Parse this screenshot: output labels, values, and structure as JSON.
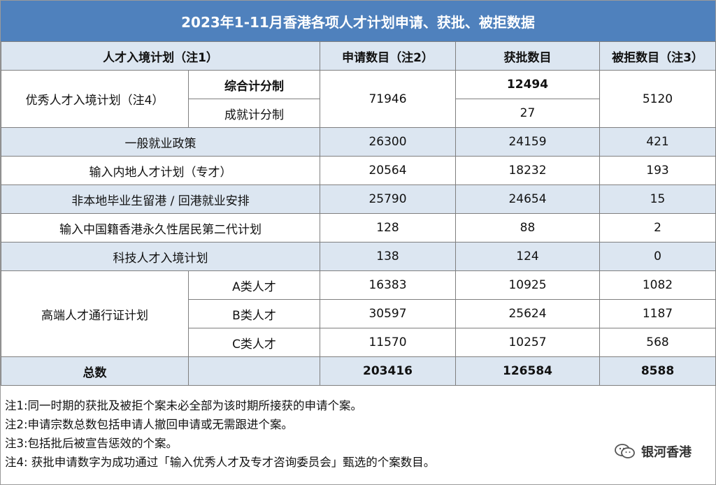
{
  "title": "2023年1-11月香港各项人才计划申请、获批、被拒数据",
  "headers": [
    "人才入境计划（注1）",
    "申请数目（注2）",
    "获批数目",
    "被拒数目（注3）"
  ],
  "rows": {
    "excellence": {
      "name": "优秀人才入境计划（注4）",
      "sub1": "综合计分制",
      "sub2": "成就计分制",
      "applied": "71946",
      "approved1": "12494",
      "approved2": "27",
      "rejected": "5120"
    },
    "general": {
      "name": "一般就业政策",
      "applied": "26300",
      "approved": "24159",
      "rejected": "421"
    },
    "mainland": {
      "name": "输入内地人才计划（专才）",
      "applied": "20564",
      "approved": "18232",
      "rejected": "193"
    },
    "graduates": {
      "name": "非本地毕业生留港 / 回港就业安排",
      "applied": "25790",
      "approved": "24654",
      "rejected": "15"
    },
    "second_gen": {
      "name": "输入中国籍香港永久性居民第二代计划",
      "applied": "128",
      "approved": "88",
      "rejected": "2"
    },
    "tech": {
      "name": "科技人才入境计划",
      "applied": "138",
      "approved": "124",
      "rejected": "0"
    },
    "top_talent": {
      "name": "高端人才通行证计划",
      "a": {
        "label": "A类人才",
        "applied": "16383",
        "approved": "10925",
        "rejected": "1082"
      },
      "b": {
        "label": "B类人才",
        "applied": "30597",
        "approved": "25624",
        "rejected": "1187"
      },
      "c": {
        "label": "C类人才",
        "applied": "11570",
        "approved": "10257",
        "rejected": "568"
      }
    },
    "total": {
      "name": "总数",
      "applied": "203416",
      "approved": "126584",
      "rejected": "8588"
    }
  },
  "notes": [
    "注1:同一时期的获批及被拒个案未必全部为该时期所接获的申请个案。",
    "注2:申请宗数总数包括申请人撤回申请或无需跟进个案。",
    "注3:包括批后被宣告惩效的个案。",
    "注4: 获批申请数字为成功通过「输入优秀人才及专才咨询委员会」甄选的个案数目。"
  ],
  "watermark": {
    "text": "银河香港",
    "icon": "wechat-icon"
  },
  "colors": {
    "title_bg": "#4f81bd",
    "row_shade": "#dce6f1"
  }
}
